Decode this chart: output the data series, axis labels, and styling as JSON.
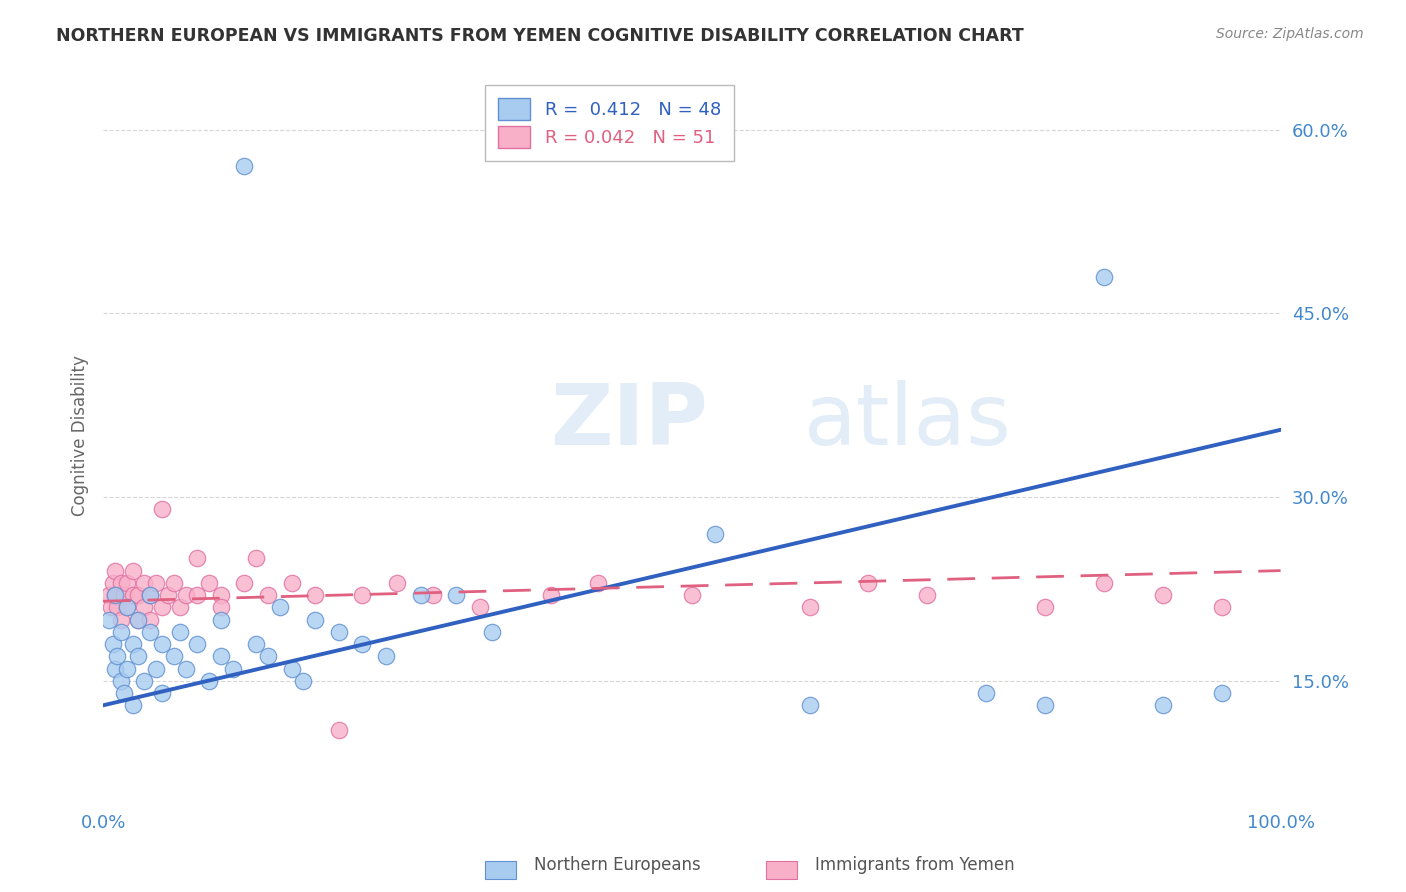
{
  "title": "NORTHERN EUROPEAN VS IMMIGRANTS FROM YEMEN COGNITIVE DISABILITY CORRELATION CHART",
  "source": "Source: ZipAtlas.com",
  "ylabel": "Cognitive Disability",
  "xlim": [
    0,
    1.0
  ],
  "ylim": [
    0.05,
    0.65
  ],
  "yticks": [
    0.15,
    0.3,
    0.45,
    0.6
  ],
  "yticklabels": [
    "15.0%",
    "30.0%",
    "45.0%",
    "60.0%"
  ],
  "xtick_positions": [
    0.0,
    1.0
  ],
  "xticklabels": [
    "0.0%",
    "100.0%"
  ],
  "blue_R": 0.412,
  "blue_N": 48,
  "pink_R": 0.042,
  "pink_N": 51,
  "blue_color": "#A8CCF0",
  "blue_edge": "#6090D0",
  "pink_color": "#F8B0C8",
  "pink_edge": "#E070A0",
  "blue_line_color": "#3060C0",
  "pink_line_color": "#E06080",
  "blue_line_y0": 0.13,
  "blue_line_y1": 0.355,
  "pink_line_y0": 0.215,
  "pink_line_y1": 0.24,
  "watermark_zip": "ZIP",
  "watermark_atlas": "atlas",
  "legend_label_blue": "Northern Europeans",
  "legend_label_pink": "Immigrants from Yemen",
  "grid_color": "#CCCCCC",
  "background_color": "#FFFFFF",
  "tick_color": "#4488CC",
  "blue_scatter_x": [
    0.005,
    0.008,
    0.01,
    0.01,
    0.012,
    0.015,
    0.015,
    0.018,
    0.02,
    0.02,
    0.025,
    0.025,
    0.03,
    0.03,
    0.035,
    0.04,
    0.04,
    0.045,
    0.05,
    0.05,
    0.06,
    0.065,
    0.07,
    0.08,
    0.09,
    0.1,
    0.1,
    0.11,
    0.12,
    0.13,
    0.14,
    0.15,
    0.16,
    0.17,
    0.18,
    0.2,
    0.22,
    0.24,
    0.27,
    0.3,
    0.33,
    0.52,
    0.6,
    0.75,
    0.8,
    0.85,
    0.9,
    0.95
  ],
  "blue_scatter_y": [
    0.2,
    0.18,
    0.16,
    0.22,
    0.17,
    0.19,
    0.15,
    0.14,
    0.21,
    0.16,
    0.18,
    0.13,
    0.2,
    0.17,
    0.15,
    0.19,
    0.22,
    0.16,
    0.18,
    0.14,
    0.17,
    0.19,
    0.16,
    0.18,
    0.15,
    0.2,
    0.17,
    0.16,
    0.57,
    0.18,
    0.17,
    0.21,
    0.16,
    0.15,
    0.2,
    0.19,
    0.18,
    0.17,
    0.22,
    0.22,
    0.19,
    0.27,
    0.13,
    0.14,
    0.13,
    0.48,
    0.13,
    0.14
  ],
  "pink_scatter_x": [
    0.005,
    0.007,
    0.008,
    0.01,
    0.01,
    0.012,
    0.015,
    0.015,
    0.018,
    0.02,
    0.02,
    0.025,
    0.025,
    0.03,
    0.03,
    0.035,
    0.035,
    0.04,
    0.04,
    0.045,
    0.05,
    0.05,
    0.055,
    0.06,
    0.065,
    0.07,
    0.08,
    0.08,
    0.09,
    0.1,
    0.1,
    0.12,
    0.13,
    0.14,
    0.16,
    0.18,
    0.2,
    0.22,
    0.25,
    0.28,
    0.32,
    0.38,
    0.42,
    0.5,
    0.6,
    0.65,
    0.7,
    0.8,
    0.85,
    0.9,
    0.95
  ],
  "pink_scatter_y": [
    0.22,
    0.21,
    0.23,
    0.22,
    0.24,
    0.21,
    0.23,
    0.2,
    0.22,
    0.21,
    0.23,
    0.22,
    0.24,
    0.2,
    0.22,
    0.23,
    0.21,
    0.22,
    0.2,
    0.23,
    0.29,
    0.21,
    0.22,
    0.23,
    0.21,
    0.22,
    0.25,
    0.22,
    0.23,
    0.22,
    0.21,
    0.23,
    0.25,
    0.22,
    0.23,
    0.22,
    0.11,
    0.22,
    0.23,
    0.22,
    0.21,
    0.22,
    0.23,
    0.22,
    0.21,
    0.23,
    0.22,
    0.21,
    0.23,
    0.22,
    0.21
  ]
}
